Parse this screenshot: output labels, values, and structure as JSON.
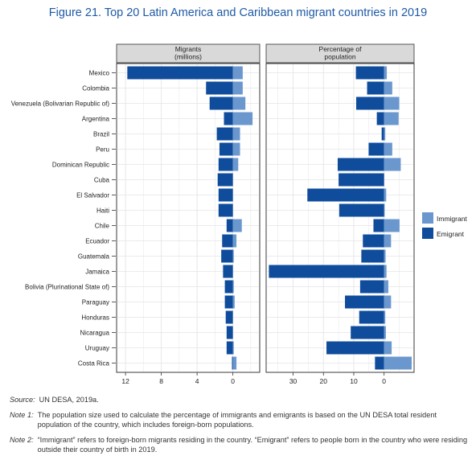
{
  "title": "Figure 21. Top 20 Latin America and Caribbean migrant countries in 2019",
  "colors": {
    "immigrant": "#6b97cf",
    "emigrant": "#0f4c9c",
    "panel_bg": "#ffffff",
    "strip_bg": "#d9d9d9",
    "grid": "#e5e5e5"
  },
  "chart_data": [
    {
      "type": "bar",
      "orientation": "horizontal",
      "panel_title": "Migrants\n(millions)",
      "categories": [
        "Mexico",
        "Colombia",
        "Venezuela (Bolivarian Republic of)",
        "Argentina",
        "Brazil",
        "Peru",
        "Dominican Republic",
        "Cuba",
        "El Salvador",
        "Haiti",
        "Chile",
        "Ecuador",
        "Guatemala",
        "Jamaica",
        "Bolivia (Plurinational State of)",
        "Paraguay",
        "Honduras",
        "Nicaragua",
        "Uruguay",
        "Costa Rica"
      ],
      "series": [
        {
          "name": "Immigrant",
          "values": [
            1.1,
            1.1,
            1.4,
            2.2,
            0.8,
            0.8,
            0.6,
            0.0,
            0.0,
            0.0,
            1.0,
            0.4,
            0.1,
            0.0,
            0.1,
            0.2,
            0.0,
            0.0,
            0.1,
            0.4
          ]
        },
        {
          "name": "Emigrant",
          "values": [
            11.8,
            3.0,
            2.6,
            1.0,
            1.8,
            1.5,
            1.6,
            1.7,
            1.6,
            1.6,
            0.7,
            1.2,
            1.3,
            1.1,
            0.9,
            0.9,
            0.8,
            0.7,
            0.7,
            0.1
          ]
        }
      ],
      "x_ticks": [
        "12",
        "8",
        "4",
        "0"
      ],
      "x_reversed": true,
      "xlim": [
        13,
        -3
      ],
      "grid": true
    },
    {
      "type": "bar",
      "orientation": "horizontal",
      "panel_title": "Percentage of\npopulation",
      "categories": [
        "Mexico",
        "Colombia",
        "Venezuela (Bolivarian Republic of)",
        "Argentina",
        "Brazil",
        "Peru",
        "Dominican Republic",
        "Cuba",
        "El Salvador",
        "Haiti",
        "Chile",
        "Ecuador",
        "Guatemala",
        "Jamaica",
        "Bolivia (Plurinational State of)",
        "Paraguay",
        "Honduras",
        "Nicaragua",
        "Uruguay",
        "Costa Rica"
      ],
      "series": [
        {
          "name": "Immigrant",
          "values": [
            0.9,
            2.7,
            5.0,
            4.8,
            0.4,
            2.7,
            5.5,
            0.0,
            0.7,
            0.2,
            5.1,
            2.3,
            0.5,
            0.8,
            1.4,
            2.3,
            0.4,
            0.6,
            2.5,
            9.1
          ]
        },
        {
          "name": "Emigrant",
          "values": [
            9.3,
            5.6,
            9.2,
            2.4,
            0.8,
            5.1,
            15.3,
            15.0,
            25.3,
            14.8,
            3.5,
            7.0,
            7.5,
            38.0,
            7.9,
            12.9,
            8.2,
            11.0,
            19.0,
            3.0
          ]
        }
      ],
      "x_ticks": [
        "30",
        "20",
        "10",
        "0"
      ],
      "x_reversed": true,
      "xlim": [
        38.9,
        -9.9
      ],
      "grid": true
    }
  ],
  "legend": {
    "position": "right",
    "items": [
      "Immigrant",
      "Emigrant"
    ]
  },
  "notes": [
    {
      "label": "Source:",
      "text": "UN DESA, 2019a."
    },
    {
      "label": "Note 1:",
      "text": "The population size used to calculate the percentage of immigrants and emigrants is based on the UN DESA total resident population of the country, which includes foreign-born populations."
    },
    {
      "label": "Note 2:",
      "text": "“Immigrant” refers to foreign-born migrants residing in the country. “Emigrant” refers to people born in the country who were residing outside their country of birth in 2019."
    }
  ]
}
